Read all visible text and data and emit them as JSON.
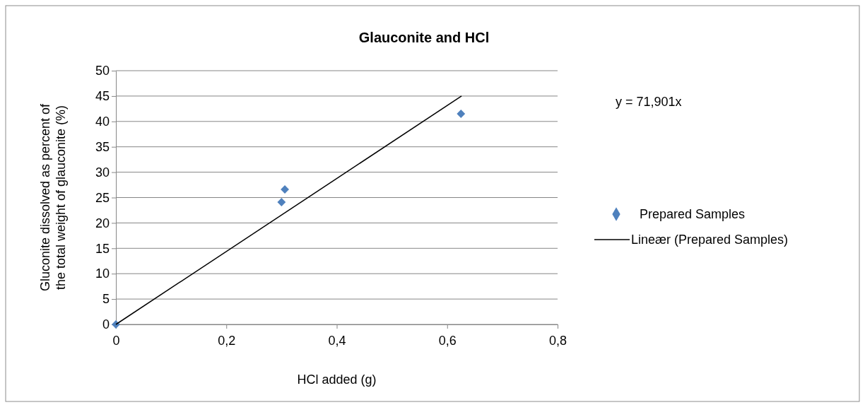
{
  "chart_data": {
    "type": "scatter",
    "title": "Glauconite and HCl",
    "xlabel": "HCl added (g)",
    "ylabel": "Gluconite dissolved as percent of the total weight of glauconite (%)",
    "x": [
      0,
      0.3,
      0.306,
      0.625
    ],
    "series": [
      {
        "name": "Prepared Samples",
        "color": "#4f81bd",
        "values": [
          0,
          24.1,
          26.6,
          41.5
        ],
        "marker": "diamond"
      },
      {
        "name": "Lineær (Prepared Samples)",
        "type": "line",
        "color": "#000000",
        "x": [
          0,
          0.626
        ],
        "values": [
          0,
          45.0
        ]
      }
    ],
    "xlim": [
      0,
      0.8
    ],
    "xticks": [
      0,
      {
        "value": 0.2,
        "label": "0,2"
      },
      {
        "value": 0.4,
        "label": "0,4"
      },
      {
        "value": 0.6,
        "label": "0,6"
      },
      {
        "value": 0.8,
        "label": "0,8"
      }
    ],
    "ylim": [
      0,
      50
    ],
    "yticks": [
      0,
      5,
      10,
      15,
      20,
      25,
      30,
      35,
      40,
      45,
      50
    ],
    "grid": "y",
    "legend": "right",
    "annotations": [
      "y = 71,901x"
    ]
  }
}
